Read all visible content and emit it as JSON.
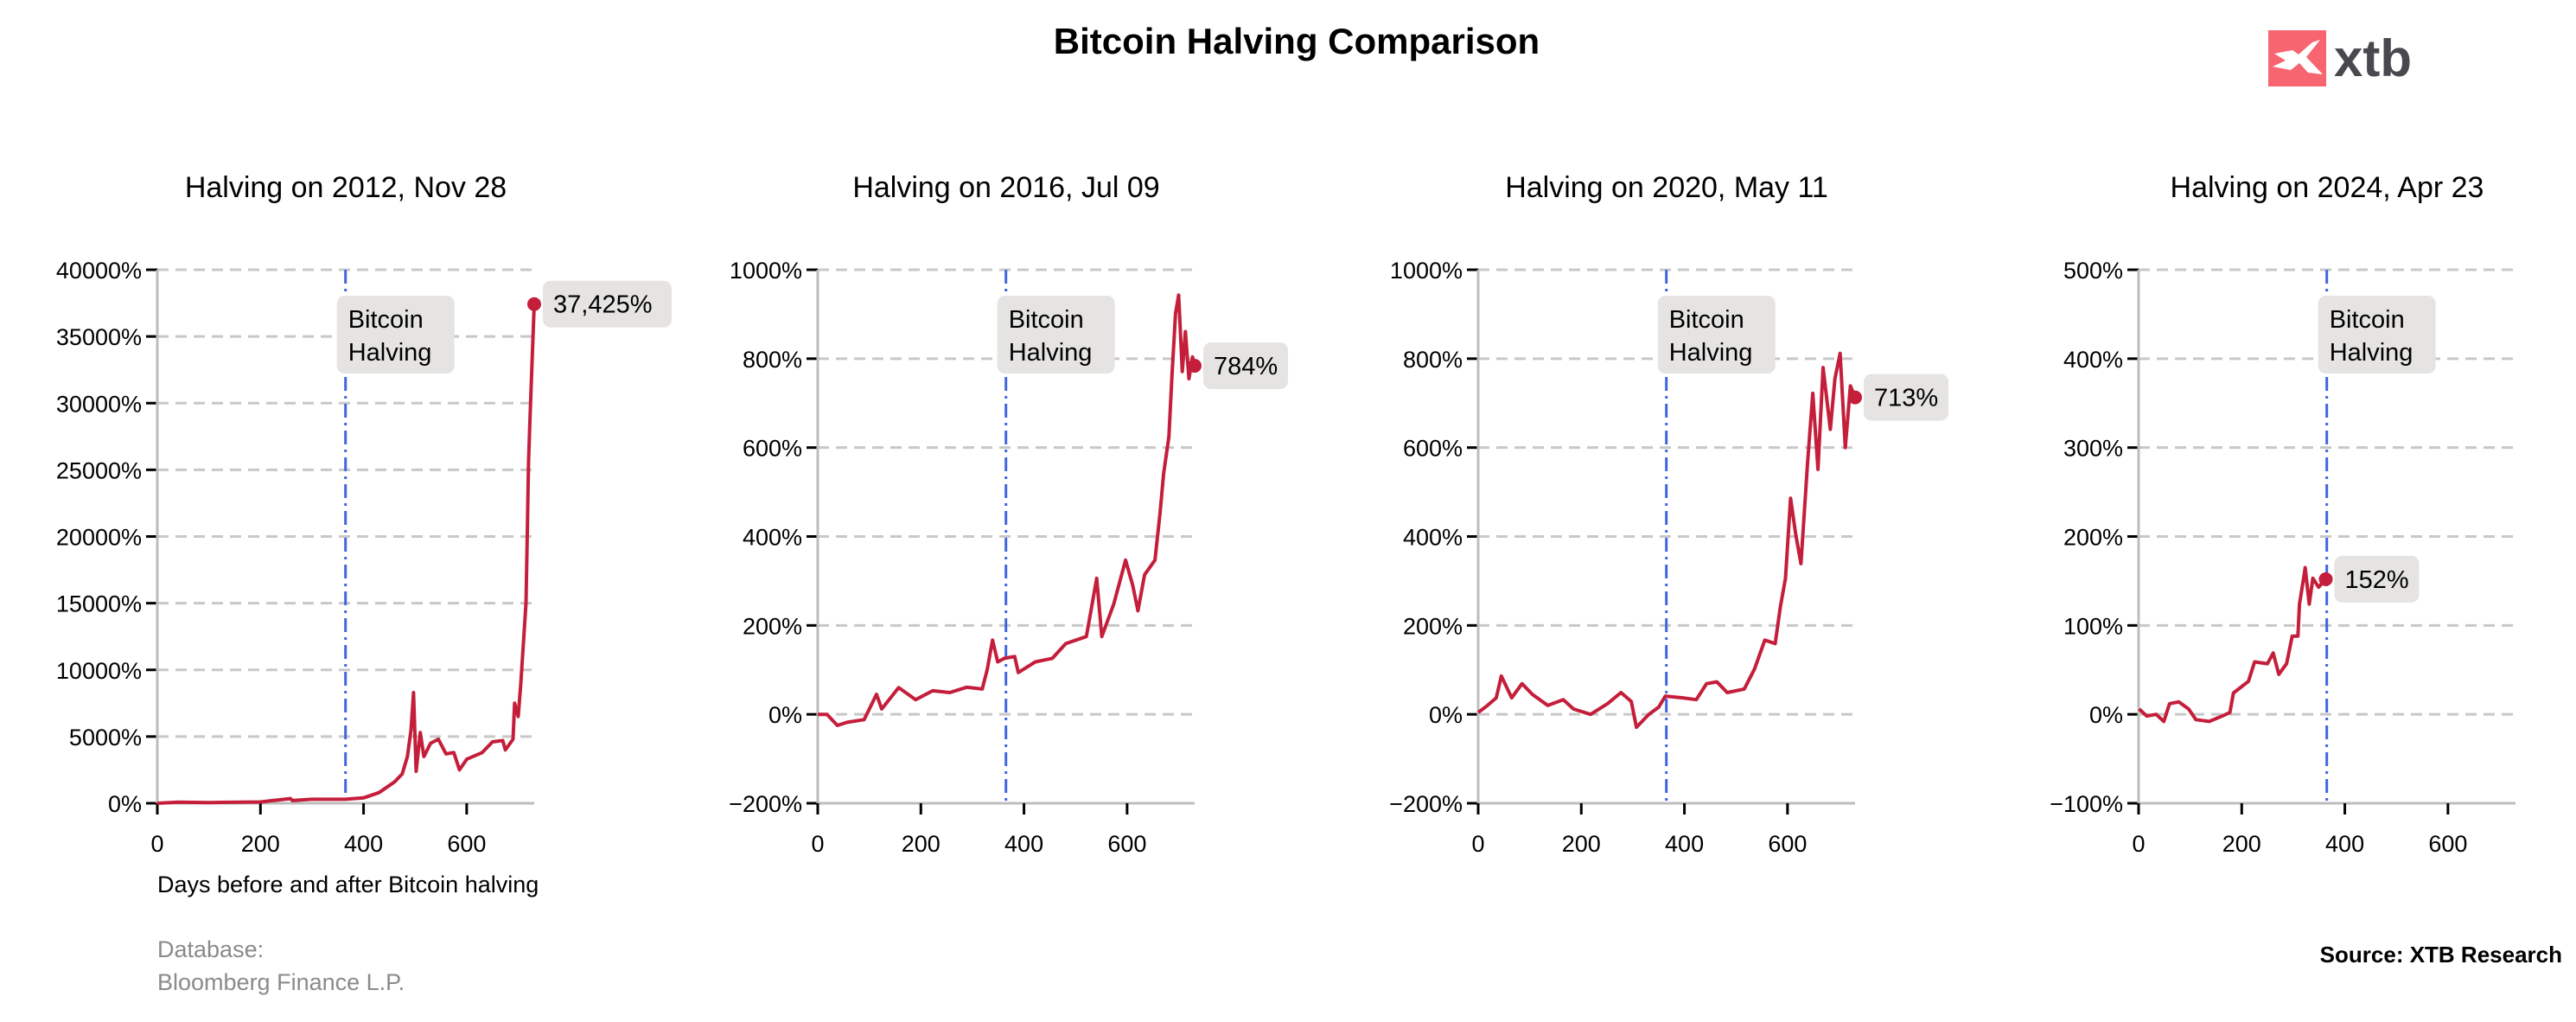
{
  "title": "Bitcoin Halving Comparison",
  "logo": "xtb",
  "logo_color": "#f76570",
  "source": "Source: XTB Research",
  "database": [
    "Database:",
    "Bloomberg Finance L.P."
  ],
  "colors": {
    "line": "#c41e3a",
    "halving_line": "#3f66e0",
    "grid": "#c8c8c8",
    "label_box": "#e5e4e2"
  },
  "chart_data": [
    {
      "type": "line",
      "title": "Halving on 2012, Nov 28",
      "xlabel": "Days before and after Bitcoin halving",
      "xlim": [
        0,
        731
      ],
      "ylim": [
        0,
        40000
      ],
      "grid": true,
      "xticks": [
        0,
        200,
        400,
        600
      ],
      "xtick_labels": [
        "0",
        "200",
        "400",
        "600"
      ],
      "yticks": [
        0,
        5000,
        10000,
        15000,
        20000,
        25000,
        30000,
        35000,
        40000
      ],
      "ytick_labels": [
        "0%",
        "5000%",
        "10000%",
        "15000%",
        "20000%",
        "25000%",
        "30000%",
        "35000%",
        "40000%"
      ],
      "halving_day": 365,
      "halving_label": [
        "Bitcoin",
        "Halving"
      ],
      "end_label": "37,425%",
      "x": [
        0,
        40,
        100,
        200,
        258,
        262,
        300,
        365,
        400,
        430,
        460,
        475,
        485,
        492,
        497,
        502,
        510,
        517,
        530,
        545,
        560,
        575,
        586,
        600,
        630,
        650,
        670,
        675,
        690,
        693,
        700,
        705,
        710,
        715,
        718,
        720,
        723,
        731
      ],
      "y": [
        0,
        80,
        50,
        100,
        350,
        200,
        300,
        300,
        400,
        800,
        1600,
        2200,
        3500,
        5500,
        8300,
        2400,
        5300,
        3500,
        4500,
        4800,
        3700,
        3800,
        2500,
        3300,
        3800,
        4600,
        4700,
        4000,
        4800,
        7500,
        6500,
        9000,
        12000,
        15000,
        21000,
        25500,
        29000,
        37425
      ]
    },
    {
      "type": "line",
      "title": "Halving on 2016, Jul 09",
      "xlim": [
        0,
        731
      ],
      "ylim": [
        -200,
        1000
      ],
      "grid": true,
      "xticks": [
        0,
        200,
        400,
        600
      ],
      "xtick_labels": [
        "0",
        "200",
        "400",
        "600"
      ],
      "yticks": [
        -200,
        0,
        200,
        400,
        600,
        800,
        1000
      ],
      "ytick_labels": [
        "−200%",
        "0%",
        "200%",
        "400%",
        "600%",
        "800%",
        "1000%"
      ],
      "halving_day": 365,
      "halving_label": [
        "Bitcoin",
        "Halving"
      ],
      "end_label": "784%",
      "x": [
        0,
        18,
        38,
        57,
        90,
        114,
        124,
        157,
        190,
        223,
        256,
        289,
        319,
        329,
        339,
        349,
        362,
        382,
        389,
        422,
        455,
        481,
        521,
        531,
        541,
        551,
        574,
        597,
        611,
        621,
        634,
        654,
        664,
        671,
        681,
        687,
        694,
        700,
        707,
        713,
        720,
        727,
        731
      ],
      "y": [
        0,
        0,
        -25,
        -18,
        -12,
        45,
        12,
        60,
        33,
        53,
        49,
        61,
        57,
        102,
        167,
        118,
        126,
        130,
        94,
        118,
        126,
        159,
        175,
        240,
        306,
        175,
        248,
        347,
        290,
        233,
        314,
        347,
        453,
        543,
        624,
        763,
        902,
        943,
        771,
        861,
        755,
        804,
        784
      ]
    },
    {
      "type": "line",
      "title": "Halving on 2020, May 11",
      "xlim": [
        0,
        731
      ],
      "ylim": [
        -200,
        1000
      ],
      "grid": true,
      "xticks": [
        0,
        200,
        400,
        600
      ],
      "xtick_labels": [
        "0",
        "200",
        "400",
        "600"
      ],
      "yticks": [
        -200,
        0,
        200,
        400,
        600,
        800,
        1000
      ],
      "ytick_labels": [
        "−200%",
        "0%",
        "200%",
        "400%",
        "600%",
        "800%",
        "1000%"
      ],
      "halving_day": 365,
      "halving_label": [
        "Bitcoin",
        "Halving"
      ],
      "end_label": "713%",
      "x": [
        0,
        18,
        35,
        45,
        65,
        85,
        105,
        135,
        165,
        185,
        218,
        251,
        277,
        297,
        307,
        331,
        350,
        363,
        397,
        423,
        443,
        463,
        483,
        516,
        536,
        556,
        576,
        586,
        596,
        606,
        616,
        626,
        639,
        649,
        659,
        669,
        683,
        692,
        702,
        712,
        722,
        731
      ],
      "y": [
        4,
        20,
        37,
        86,
        37,
        69,
        45,
        20,
        33,
        12,
        0,
        24,
        49,
        29,
        -29,
        0,
        16,
        41,
        37,
        33,
        69,
        73,
        49,
        57,
        102,
        167,
        159,
        241,
        306,
        486,
        404,
        339,
        567,
        722,
        551,
        780,
        641,
        755,
        812,
        600,
        739,
        713
      ]
    },
    {
      "type": "line",
      "title": "Halving on 2024, Apr 23",
      "xlim": [
        0,
        731
      ],
      "ylim": [
        -100,
        500
      ],
      "grid": true,
      "xticks": [
        0,
        200,
        400,
        600
      ],
      "xtick_labels": [
        "0",
        "200",
        "400",
        "600"
      ],
      "yticks": [
        -100,
        0,
        100,
        200,
        300,
        400,
        500
      ],
      "ytick_labels": [
        "−100%",
        "0%",
        "100%",
        "200%",
        "300%",
        "400%",
        "500%"
      ],
      "halving_day": 365,
      "halving_label": [
        "Bitcoin",
        "Halving"
      ],
      "end_label": "152%",
      "x": [
        1,
        16,
        34,
        49,
        60,
        78,
        97,
        111,
        137,
        162,
        177,
        184,
        213,
        225,
        250,
        261,
        272,
        287,
        298,
        309,
        312,
        320,
        323,
        331,
        338,
        349,
        363
      ],
      "y": [
        6,
        -2,
        0,
        -8,
        12,
        14,
        6,
        -6,
        -8,
        -2,
        2,
        24,
        37,
        59,
        57,
        69,
        45,
        57,
        88,
        88,
        124,
        153,
        165,
        124,
        153,
        143,
        152
      ]
    }
  ]
}
